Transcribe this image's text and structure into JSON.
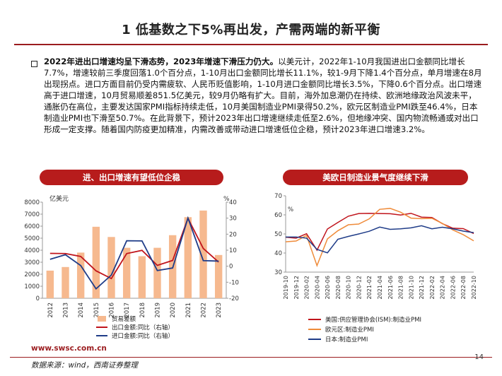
{
  "title": "1 低基数之下5%再出发，产需两端的新平衡",
  "paragraph": {
    "bold": "2022年进出口增速均呈下滑态势，2023年增速下滑压力仍大。",
    "text": "以美元计，2022年1-10月我国进出口金额同比增长7.7%，增速较前三季度回落1.0个百分点，1-10月出口金额同比增长11.1%，较1-9月下降1.4个百分点，单月增速在8月出现拐点。进口方面目前仍受内需疲软、人民币贬值影响，1-10月进口金额同比增长3.5%，下降0.6个百分点。出口增速高于进口增速，10月贸易顺差851.5亿美元，较9月仍略有扩大。目前，海外加息潮仍在持续、欧洲地缘政治风波未平，通胀仍在高位，主要发达国家PMI指标持续走低，10月美国制造业PMI录得50.2%，欧元区制造业PMI跌至46.4%，日本制造业PMI也下滑至50.7%。在此背景下，预计2023年出口增速继续走低至2.6%，但地缘冲突、国内物流畅通或对出口形成一定支撑。随着国内防疫更加精准，内需改善或带动进口增速低位企稳，预计2023年进口增速3.2%。"
  },
  "chart_left_header": "进、出口增速有望低位企稳",
  "chart_right_header": "美欧日制造业景气度继续下滑",
  "website": "www.swsc.com.cn",
  "source_note": "数据来源：wind，西南证券整理",
  "page_number": "14",
  "chart_data": [
    {
      "type": "bar",
      "ylabel_left": "亿美元",
      "ylabel_right": "%",
      "categories": [
        "2012",
        "2013",
        "2014",
        "2015",
        "2016",
        "2017",
        "2018",
        "2019",
        "2020",
        "2021",
        "2022",
        "2023"
      ],
      "ylim_left": [
        0,
        8000
      ],
      "ylim_right": [
        -20,
        40
      ],
      "yticks_left": [
        "0",
        "1000",
        "2000",
        "3000",
        "4000",
        "5000",
        "6000",
        "7000",
        "8000"
      ],
      "yticks_right": [
        "-20",
        "-10",
        "0",
        "10",
        "20",
        "30",
        "40"
      ],
      "series": [
        {
          "name": "贸易差额",
          "axis": "left",
          "kind": "bar",
          "color": "#f6b98f",
          "values": [
            2300,
            2600,
            3800,
            5950,
            5100,
            4200,
            3500,
            4200,
            5250,
            6750,
            7300,
            3600
          ]
        },
        {
          "name": "出口金额:同比（右轴）",
          "axis": "right",
          "kind": "line",
          "color": "#c0141c",
          "values": [
            8,
            7.9,
            6.1,
            -2.9,
            -7.7,
            7.9,
            9.9,
            0.5,
            3.6,
            29.9,
            11.1,
            2.6
          ]
        },
        {
          "name": "进口金额:同比（右轴）",
          "axis": "right",
          "kind": "line",
          "color": "#1f3c88",
          "values": [
            4.3,
            7.2,
            0.4,
            -14.1,
            -5.5,
            15.9,
            15.8,
            -2.7,
            -1.1,
            30.1,
            3.5,
            3.2
          ]
        }
      ]
    },
    {
      "type": "line",
      "ylabel": "%",
      "ylim": [
        30,
        70
      ],
      "yticks": [
        "30",
        "40",
        "50",
        "60",
        "70"
      ],
      "x": [
        "2019-10",
        "2019-12",
        "2020-02",
        "2020-04",
        "2020-06",
        "2020-08",
        "2020-10",
        "2020-12",
        "2021-02",
        "2021-04",
        "2021-06",
        "2021-08",
        "2021-10",
        "2021-12",
        "2022-02",
        "2022-04",
        "2022-06",
        "2022-08",
        "2022-10"
      ],
      "series": [
        {
          "name": "美国:供应管理协会(ISM):制造业PMI",
          "color": "#c0141c",
          "values": [
            48.3,
            47.8,
            50.1,
            41.5,
            52.6,
            56.0,
            59.3,
            60.7,
            60.8,
            60.7,
            60.6,
            59.9,
            60.8,
            58.8,
            58.6,
            55.4,
            53.0,
            52.8,
            50.2
          ]
        },
        {
          "name": "欧元区:制造业PMI",
          "color": "#ef8b3a",
          "values": [
            45.9,
            46.3,
            49.2,
            33.4,
            47.4,
            51.7,
            54.8,
            55.2,
            57.9,
            62.9,
            63.4,
            61.4,
            58.3,
            58.0,
            58.2,
            55.5,
            52.1,
            49.6,
            46.4
          ]
        },
        {
          "name": "日本:制造业PMI",
          "color": "#1f3c88",
          "values": [
            48.4,
            48.4,
            47.8,
            41.9,
            40.1,
            47.2,
            48.7,
            50.0,
            51.4,
            53.6,
            52.4,
            52.7,
            53.2,
            54.3,
            52.7,
            53.5,
            52.7,
            51.5,
            50.7
          ]
        }
      ]
    }
  ]
}
